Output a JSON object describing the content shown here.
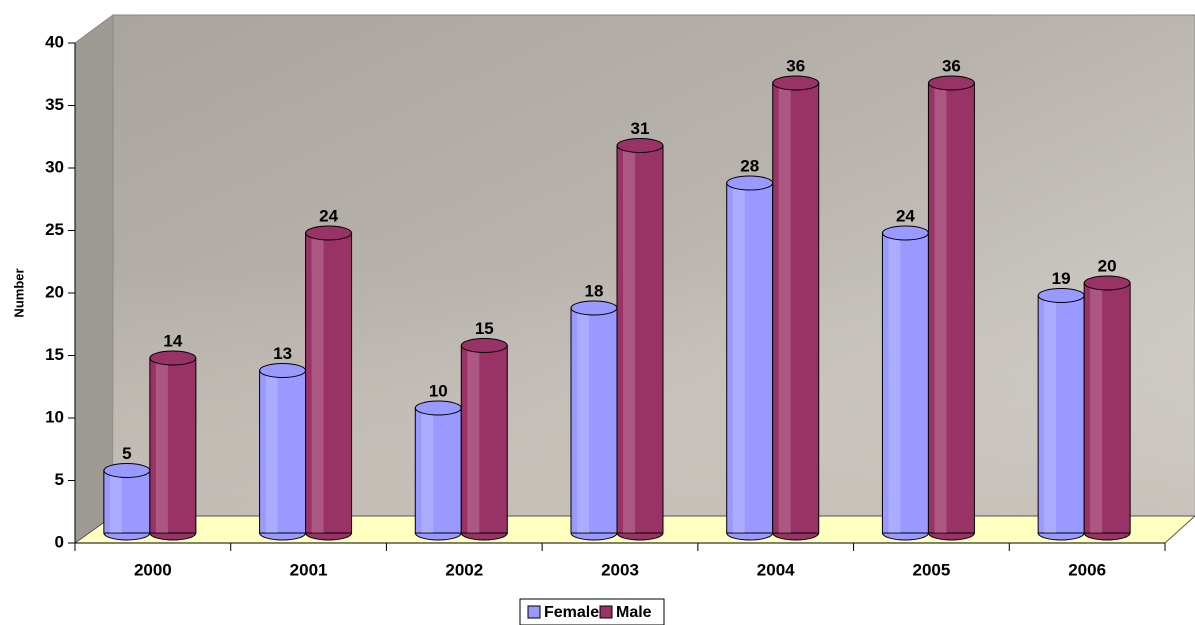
{
  "chart_data": {
    "type": "bar",
    "y_label": "Number",
    "categories": [
      "2000",
      "2001",
      "2002",
      "2003",
      "2004",
      "2005",
      "2006"
    ],
    "series": [
      {
        "name": "Female",
        "color": "#9999ff",
        "values": [
          5,
          13,
          10,
          18,
          28,
          24,
          19
        ]
      },
      {
        "name": "Male",
        "color": "#993366",
        "values": [
          14,
          24,
          15,
          31,
          36,
          36,
          20
        ]
      }
    ],
    "ylim": [
      0,
      40
    ],
    "yticks": [
      0,
      5,
      10,
      15,
      20,
      25,
      30,
      35,
      40
    ]
  }
}
